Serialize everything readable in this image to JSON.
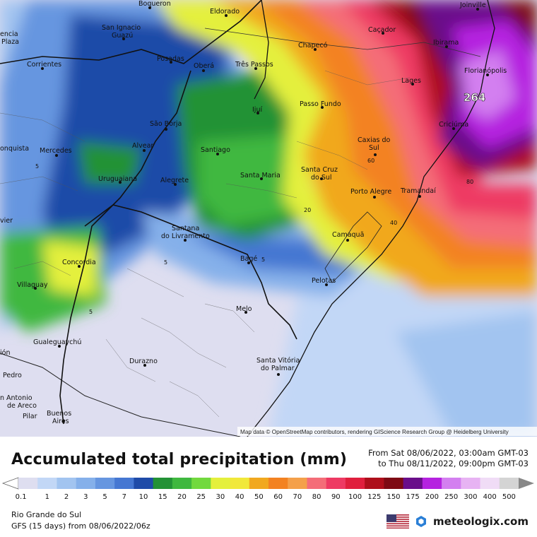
{
  "map": {
    "attribution": "Map data © OpenStreetMap contributors, rendering GIScience Research Group @ Heidelberg University",
    "max_value_label": "264",
    "contour_labels": [
      "5",
      "5",
      "5",
      "5",
      "20",
      "40",
      "60",
      "80"
    ],
    "cities": [
      {
        "name": "Boqueron"
      },
      {
        "name": "Eldorado"
      },
      {
        "name": "Joinville"
      },
      {
        "name": "San Ignacio"
      },
      {
        "name": "Guazú"
      },
      {
        "name": "encia"
      },
      {
        "name": "Plaza"
      },
      {
        "name": "Corrientes"
      },
      {
        "name": "Posadas"
      },
      {
        "name": "Oberá"
      },
      {
        "name": "Três Passos"
      },
      {
        "name": "Chapecó"
      },
      {
        "name": "Caçador"
      },
      {
        "name": "Ibirama"
      },
      {
        "name": "Florianópolis"
      },
      {
        "name": "Lages"
      },
      {
        "name": "Ijuí"
      },
      {
        "name": "Passo Fundo"
      },
      {
        "name": "Criciúma"
      },
      {
        "name": "São Borja"
      },
      {
        "name": "Alvear"
      },
      {
        "name": "Santiago"
      },
      {
        "name": "Caxias do"
      },
      {
        "name": "Sul"
      },
      {
        "name": "onquista"
      },
      {
        "name": "Mercedes"
      },
      {
        "name": "Santa Cruz"
      },
      {
        "name": "do Sul"
      },
      {
        "name": "Uruguaiana"
      },
      {
        "name": "Alegrete"
      },
      {
        "name": "Santa Maria"
      },
      {
        "name": "Porto Alegre"
      },
      {
        "name": "Tramandaí"
      },
      {
        "name": "vier"
      },
      {
        "name": "Santana"
      },
      {
        "name": "do Livramento"
      },
      {
        "name": "Camaquã"
      },
      {
        "name": "Concordia"
      },
      {
        "name": "Bagé"
      },
      {
        "name": "Villaguay"
      },
      {
        "name": "Pelotas"
      },
      {
        "name": "Melo"
      },
      {
        "name": "Gualeguaychú"
      },
      {
        "name": "ión"
      },
      {
        "name": "Durazno"
      },
      {
        "name": "Santa Vitória"
      },
      {
        "name": "do Palmar"
      },
      {
        "name": "Pedro"
      },
      {
        "name": "n Antonio"
      },
      {
        "name": "de Areco"
      },
      {
        "name": "Buenos"
      },
      {
        "name": "Aires"
      },
      {
        "name": "Pilar"
      }
    ]
  },
  "footer": {
    "title": "Accumulated total precipitation (mm)",
    "period_from": "From Sat 08/06/2022, 03:00am GMT-03",
    "period_to": "to Thu 08/11/2022, 09:00pm GMT-03",
    "region": "Rio Grande do Sul",
    "model_run": "GFS (15 days) from  08/06/2022/06z",
    "brand": "meteologix.com"
  },
  "legend": {
    "labels": [
      "0.1",
      "1",
      "2",
      "3",
      "5",
      "7",
      "10",
      "15",
      "20",
      "25",
      "30",
      "40",
      "50",
      "60",
      "70",
      "80",
      "90",
      "100",
      "125",
      "150",
      "175",
      "200",
      "250",
      "300",
      "400",
      "500"
    ],
    "colors": [
      "#dedef0",
      "#c2d7f6",
      "#a2c4f0",
      "#85b0ea",
      "#6696e0",
      "#4577d2",
      "#1f4ba8",
      "#239236",
      "#3fb83f",
      "#72d93e",
      "#e4f03c",
      "#f1e83a",
      "#f1a81f",
      "#f38221",
      "#f4a04a",
      "#f46d78",
      "#ee3a63",
      "#e01f3d",
      "#ae0f1b",
      "#7e0a14",
      "#6a0e8a",
      "#b522e0",
      "#d37ff0",
      "#e7b3f3",
      "#f0dcf6",
      "#d4d4d4"
    ],
    "accent_colors": {
      "arrow_left": "#ffffff",
      "arrow_right": "#888888"
    }
  },
  "chart_data": {
    "type": "heatmap",
    "title": "Accumulated total precipitation (mm)",
    "colorbar_levels": [
      0.1,
      1,
      2,
      3,
      5,
      7,
      10,
      15,
      20,
      25,
      30,
      40,
      50,
      60,
      70,
      80,
      90,
      100,
      125,
      150,
      175,
      200,
      250,
      300,
      400,
      500
    ],
    "max_value": 264,
    "unit": "mm"
  }
}
